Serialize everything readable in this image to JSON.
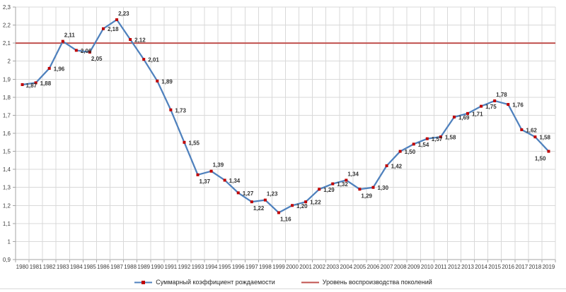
{
  "chart_data": {
    "type": "line",
    "title": "",
    "xlabel": "",
    "ylabel": "",
    "x": [
      1980,
      1981,
      1982,
      1983,
      1984,
      1985,
      1986,
      1987,
      1988,
      1989,
      1990,
      1991,
      1992,
      1993,
      1994,
      1995,
      1996,
      1997,
      1998,
      1999,
      2000,
      2001,
      2002,
      2003,
      2004,
      2005,
      2006,
      2007,
      2008,
      2009,
      2010,
      2011,
      2012,
      2013,
      2014,
      2015,
      2016,
      2017,
      2018,
      2019
    ],
    "series": [
      {
        "name": "Суммарный коэффициент рождаемости",
        "values": [
          1.87,
          1.88,
          1.96,
          2.11,
          2.06,
          2.05,
          2.18,
          2.23,
          2.12,
          2.01,
          1.89,
          1.73,
          1.55,
          1.37,
          1.39,
          1.34,
          1.27,
          1.22,
          1.23,
          1.16,
          1.2,
          1.22,
          1.29,
          1.32,
          1.34,
          1.29,
          1.3,
          1.42,
          1.5,
          1.54,
          1.57,
          1.58,
          1.69,
          1.71,
          1.75,
          1.78,
          1.76,
          1.62,
          1.58,
          1.5
        ],
        "value_labels": [
          "1,87",
          "1,88",
          "1,96",
          "2,11",
          "2,06",
          "2,05",
          "2,18",
          "2,23",
          "2,12",
          "2,01",
          "1,89",
          "1,73",
          "1,55",
          "1,37",
          "1,39",
          "1,34",
          "1,27",
          "1,22",
          "1,23",
          "1,16",
          "1,20",
          "1,22",
          "1,29",
          "1,32",
          "1,34",
          "1,29",
          "1,30",
          "1,42",
          "1,50",
          "1,54",
          "1,57",
          "1,58",
          "1,69",
          "1,71",
          "1,75",
          "1,78",
          "1,76",
          "1,62",
          "1,58",
          "1,50"
        ],
        "color": "#4f81bd",
        "marker": "square",
        "marker_color": "#c00000"
      },
      {
        "name": "Уровень воспроизводства поколений",
        "type": "constant-line",
        "value": 2.1,
        "color": "#c0504d"
      }
    ],
    "ylim": [
      0.9,
      2.3
    ],
    "y_step": 0.1,
    "y_ticks": [
      "2,3",
      "2,2",
      "2,1",
      "2",
      "1,9",
      "1,8",
      "1,7",
      "1,6",
      "1,5",
      "1,4",
      "1,3",
      "1,2",
      "1,1",
      "1",
      "0,9"
    ],
    "grid": true,
    "legend_position": "bottom",
    "colors": {
      "grid": "#d9d9d9",
      "axis": "#a6a6a6",
      "tick_text": "#404040",
      "data_label_text": "#333333",
      "background": "#ffffff"
    }
  }
}
